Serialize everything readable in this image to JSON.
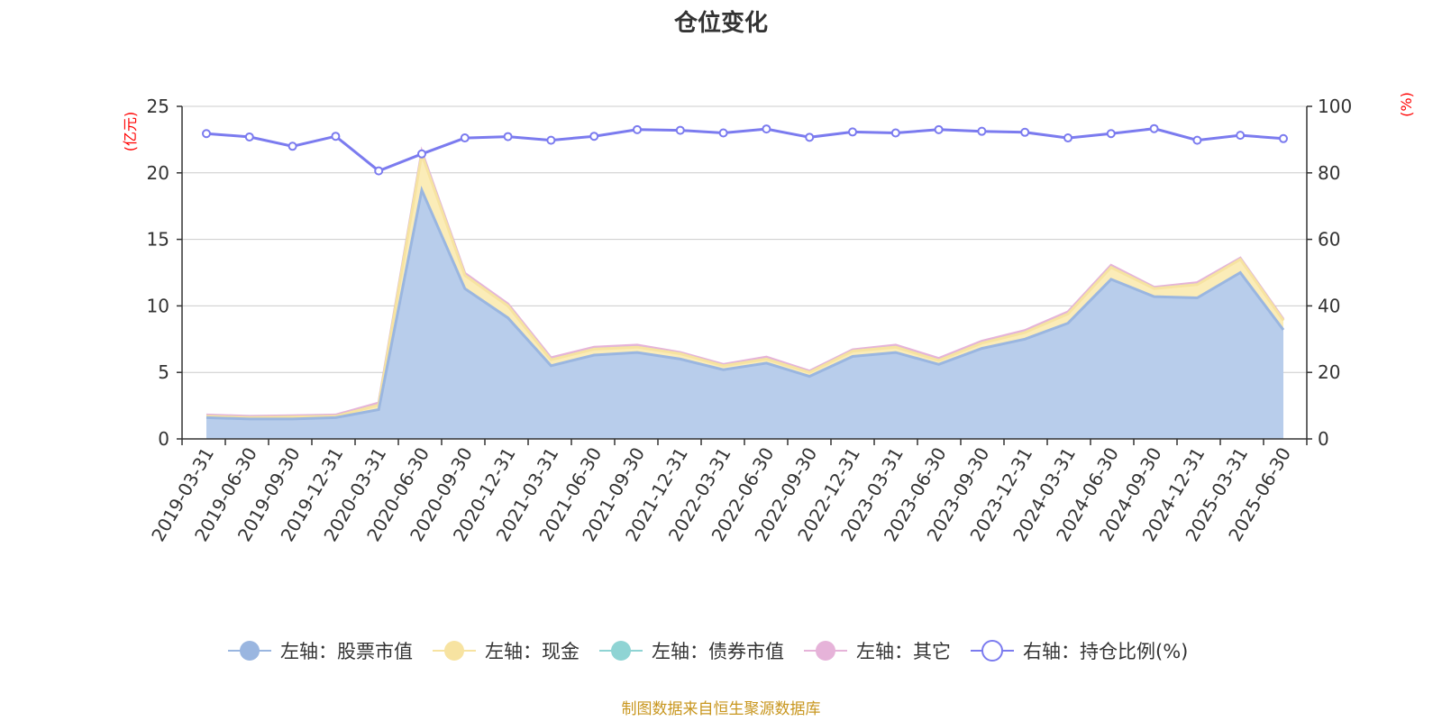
{
  "chart_data": {
    "type": "area",
    "title": "仓位变化",
    "left_axis_unit": "(亿元)",
    "right_axis_unit": "(%)",
    "left_ylim": [
      0,
      25
    ],
    "left_ticks": [
      0,
      5,
      10,
      15,
      20,
      25
    ],
    "right_ylim": [
      0,
      100
    ],
    "right_ticks": [
      0,
      20,
      40,
      60,
      80,
      100
    ],
    "grid": true,
    "legend_position": "bottom",
    "x": [
      "2019-03-31",
      "2019-06-30",
      "2019-09-30",
      "2019-12-31",
      "2020-03-31",
      "2020-06-30",
      "2020-09-30",
      "2020-12-31",
      "2021-03-31",
      "2021-06-30",
      "2021-09-30",
      "2021-12-31",
      "2022-03-31",
      "2022-06-30",
      "2022-09-30",
      "2022-12-31",
      "2023-03-31",
      "2023-06-30",
      "2023-09-30",
      "2023-12-31",
      "2024-03-31",
      "2024-06-30",
      "2024-09-30",
      "2024-12-31",
      "2025-03-31",
      "2025-06-30"
    ],
    "series": [
      {
        "name": "左轴：股票市值",
        "axis": "left",
        "stack": true,
        "color": "#9ab6e0",
        "fill": "#b8cdeb",
        "values": [
          1.6,
          1.5,
          1.5,
          1.6,
          2.2,
          18.7,
          11.3,
          9.1,
          5.5,
          6.3,
          6.5,
          6.0,
          5.2,
          5.7,
          4.7,
          6.2,
          6.5,
          5.6,
          6.8,
          7.5,
          8.7,
          12.0,
          10.7,
          10.6,
          12.5,
          8.2
        ]
      },
      {
        "name": "左轴：现金",
        "axis": "left",
        "stack": true,
        "color": "#f7e3a1",
        "fill": "#fbecb8",
        "values": [
          0.1,
          0.1,
          0.15,
          0.1,
          0.35,
          2.7,
          1.0,
          0.9,
          0.45,
          0.45,
          0.4,
          0.4,
          0.3,
          0.3,
          0.3,
          0.4,
          0.4,
          0.3,
          0.4,
          0.5,
          0.7,
          0.9,
          0.6,
          1.0,
          1.0,
          0.7
        ]
      },
      {
        "name": "左轴：债券市值",
        "axis": "left",
        "stack": true,
        "color": "#8fd4d4",
        "fill": "#a9dede",
        "values": [
          0,
          0,
          0,
          0,
          0,
          0,
          0,
          0,
          0,
          0,
          0,
          0,
          0,
          0,
          0,
          0,
          0,
          0,
          0,
          0,
          0,
          0,
          0,
          0,
          0,
          0
        ]
      },
      {
        "name": "左轴：其它",
        "axis": "left",
        "stack": true,
        "color": "#e6b3d9",
        "fill": "#eec7e3",
        "values": [
          0.1,
          0.1,
          0.1,
          0.1,
          0.15,
          0.2,
          0.15,
          0.15,
          0.15,
          0.15,
          0.15,
          0.1,
          0.1,
          0.15,
          0.1,
          0.1,
          0.15,
          0.15,
          0.15,
          0.15,
          0.15,
          0.15,
          0.1,
          0.15,
          0.1,
          0.1
        ]
      },
      {
        "name": "右轴：持仓比例(%)",
        "axis": "right",
        "type": "line",
        "color": "#7b7bef",
        "values": [
          91.8,
          90.8,
          88.0,
          91.0,
          80.6,
          85.7,
          90.5,
          90.9,
          89.8,
          91.0,
          93.0,
          92.8,
          92.0,
          93.2,
          90.7,
          92.3,
          92.0,
          93.0,
          92.5,
          92.2,
          90.5,
          91.8,
          93.3,
          89.8,
          91.3,
          90.3
        ]
      }
    ],
    "source": "制图数据来自恒生聚源数据库"
  }
}
